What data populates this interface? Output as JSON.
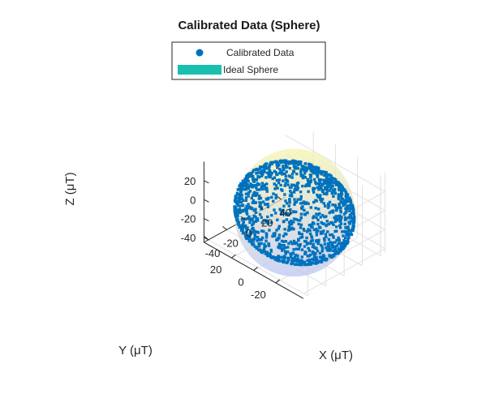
{
  "chart_data": {
    "type": "scatter",
    "title": "Calibrated Data (Sphere)",
    "xlabel": "X (μT)",
    "ylabel": "Y (μT)",
    "zlabel": "Z (μT)",
    "xlim": [
      -45,
      45
    ],
    "ylim": [
      -45,
      45
    ],
    "zlim": [
      -45,
      40
    ],
    "xticks": [
      -40,
      -20,
      0,
      20,
      40
    ],
    "yticks": [
      -20,
      0,
      20
    ],
    "zticks": [
      -40,
      -20,
      0,
      20
    ],
    "x_tick_labels": [
      "-40",
      "-20",
      "0",
      "20",
      "40"
    ],
    "y_tick_labels": [
      "-20",
      "0",
      "20"
    ],
    "z_tick_labels": [
      "-40",
      "-20",
      "0",
      "20"
    ],
    "grid": true,
    "legend_position": "top-center",
    "legend": [
      {
        "label": "Calibrated Data",
        "marker": "filled-circle",
        "color": "#0072BD"
      },
      {
        "label": "Ideal Sphere",
        "marker": "surface-patch",
        "color": "#1ABFB0"
      }
    ],
    "series": [
      {
        "name": "Calibrated Data",
        "kind": "scatter3",
        "color": "#0072BD",
        "point_count": 1400,
        "distribution": "points on sphere surface",
        "center": [
          0,
          0,
          -8
        ],
        "radius": 42
      },
      {
        "name": "Ideal Sphere",
        "kind": "surface",
        "center": [
          0,
          0,
          -8
        ],
        "radius": 42,
        "colormap_top": "#F4F4B0",
        "colormap_bottom": "#BCC6F2",
        "face_alpha": 0.5
      }
    ]
  }
}
